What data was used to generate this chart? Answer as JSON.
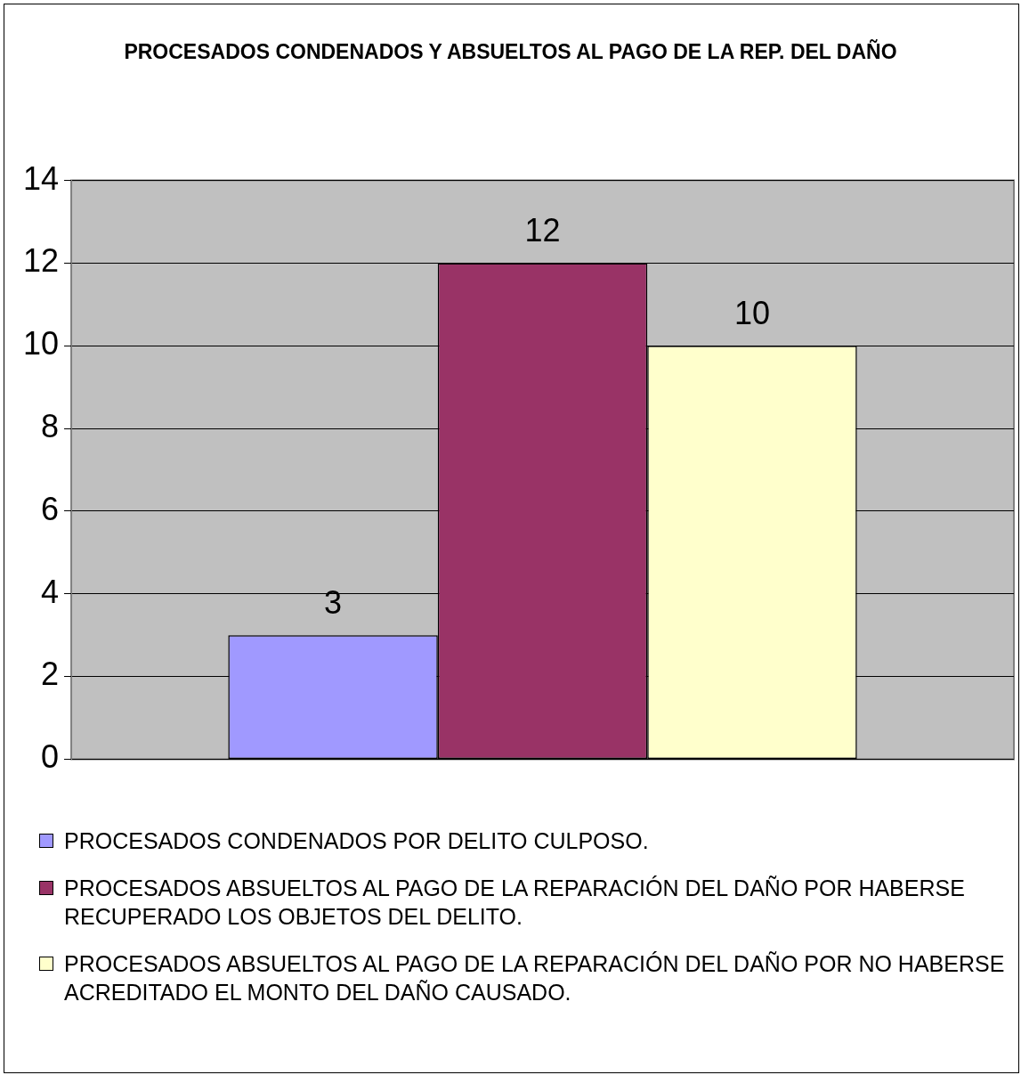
{
  "chart_data": {
    "type": "bar",
    "title": "PROCESADOS CONDENADOS Y ABSUELTOS AL PAGO DE LA REP. DEL DAÑO",
    "categories": [
      null
    ],
    "series": [
      {
        "name": "PROCESADOS CONDENADOS POR DELITO CULPOSO.",
        "color": "#a099ff",
        "values": [
          3
        ]
      },
      {
        "name": "PROCESADOS ABSUELTOS AL PAGO DE LA REPARACIÓN DEL DAÑO POR HABERSE RECUPERADO LOS OBJETOS DEL DELITO.",
        "color": "#993366",
        "values": [
          12
        ]
      },
      {
        "name": "PROCESADOS ABSUELTOS AL PAGO DE LA REPARACIÓN DEL DAÑO POR NO HABERSE ACREDITADO EL MONTO DEL DAÑO CAUSADO.",
        "color": "#ffffcc",
        "values": [
          10
        ]
      }
    ],
    "ylim": [
      0,
      14
    ],
    "yticks": [
      0,
      2,
      4,
      6,
      8,
      10,
      12,
      14
    ],
    "grid": "y",
    "legend": "bottom",
    "data_labels": true
  }
}
